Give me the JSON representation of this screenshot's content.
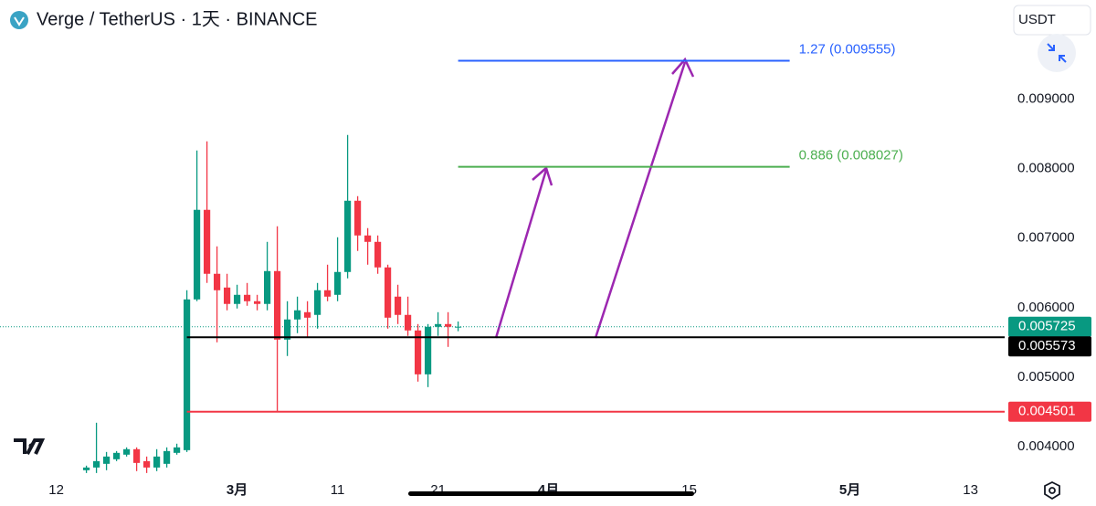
{
  "header": {
    "title": "Verge / TetherUS · 1天 · BINANCE",
    "currency": "USDT"
  },
  "chart_data": {
    "type": "candlestick",
    "x": [
      3,
      4,
      5,
      6,
      7,
      8,
      9,
      10,
      11,
      12,
      13,
      14,
      15,
      16,
      17,
      18,
      19,
      20,
      21,
      22,
      23,
      24,
      25,
      26,
      27,
      28,
      29,
      30,
      31,
      32,
      33,
      34,
      35,
      36,
      37,
      38,
      39,
      40
    ],
    "open": [
      0.003658,
      0.003697,
      0.00375,
      0.003816,
      0.003882,
      0.003961,
      0.003789,
      0.003697,
      0.00375,
      0.003908,
      0.003947,
      0.006118,
      0.007408,
      0.006487,
      0.006289,
      0.006053,
      0.006184,
      0.006092,
      0.006053,
      0.006526,
      0.005539,
      0.005829,
      0.005934,
      0.005895,
      0.00625,
      0.006184,
      0.006513,
      0.007539,
      0.007039,
      0.006947,
      0.006579,
      0.006158,
      0.005895,
      0.005671,
      0.005039,
      0.005724,
      0.005763,
      0.005724
    ],
    "high": [
      0.003724,
      0.004342,
      0.003921,
      0.003934,
      0.003987,
      0.003987,
      0.003855,
      0.003961,
      0.003987,
      0.00404,
      0.00625,
      0.008263,
      0.008395,
      0.006882,
      0.006487,
      0.006329,
      0.006355,
      0.006184,
      0.006947,
      0.007171,
      0.006092,
      0.006158,
      0.006092,
      0.006355,
      0.006618,
      0.007013,
      0.008487,
      0.007605,
      0.007145,
      0.007039,
      0.006618,
      0.006329,
      0.006158,
      0.005763,
      0.005763,
      0.005934,
      0.005934,
      0.0058
    ],
    "low": [
      0.003618,
      0.003618,
      0.003658,
      0.003789,
      0.003855,
      0.003645,
      0.003618,
      0.003645,
      0.003697,
      0.003882,
      0.003921,
      0.006092,
      0.006355,
      0.0055,
      0.005961,
      0.005987,
      0.006026,
      0.005961,
      0.005961,
      0.004501,
      0.005303,
      0.005632,
      0.005566,
      0.005697,
      0.006092,
      0.006092,
      0.006421,
      0.006816,
      0.006618,
      0.006487,
      0.005697,
      0.005763,
      0.005592,
      0.004934,
      0.004855,
      0.005592,
      0.005434,
      0.00566
    ],
    "close": [
      0.003697,
      0.003789,
      0.003855,
      0.003908,
      0.003961,
      0.003763,
      0.003697,
      0.003855,
      0.003934,
      0.003987,
      0.006118,
      0.007408,
      0.006487,
      0.00625,
      0.006053,
      0.006184,
      0.006092,
      0.006053,
      0.006526,
      0.005539,
      0.005829,
      0.005961,
      0.005855,
      0.00625,
      0.006158,
      0.006513,
      0.007539,
      0.007039,
      0.006947,
      0.006579,
      0.005855,
      0.005895,
      0.005671,
      0.005039,
      0.005724,
      0.005763,
      0.005724,
      0.005725
    ],
    "up_color": "#089981",
    "down_color": "#f23645",
    "xlim": [
      -5.6,
      94.4
    ],
    "xticks": [
      {
        "value": 0,
        "label": "12"
      },
      {
        "value": 18,
        "label": "3月"
      },
      {
        "value": 28,
        "label": "11"
      },
      {
        "value": 38,
        "label": "21"
      },
      {
        "value": 49,
        "label": "4月"
      },
      {
        "value": 63,
        "label": "15"
      },
      {
        "value": 79,
        "label": "5月"
      },
      {
        "value": 91,
        "label": "13"
      }
    ],
    "ylim": [
      0.00359,
      0.01043
    ],
    "yticks": [
      {
        "value": 0.004,
        "label": "0.004000"
      },
      {
        "value": 0.005,
        "label": "0.005000"
      },
      {
        "value": 0.006,
        "label": "0.006000"
      },
      {
        "value": 0.007,
        "label": "0.007000"
      },
      {
        "value": 0.008,
        "label": "0.008000"
      },
      {
        "value": 0.009,
        "label": "0.009000"
      }
    ],
    "last_price": 0.005725,
    "levels": [
      {
        "value": 0.005573,
        "color": "#000000",
        "start_x": 13
      },
      {
        "value": 0.004501,
        "color": "#f23645",
        "start_x": 13
      }
    ],
    "fib_levels": [
      {
        "label": "1.27 (0.009555)",
        "value": 0.009555,
        "color": "#2962ff",
        "start_x": 40,
        "end_x": 73
      },
      {
        "label": "0.886 (0.008027)",
        "value": 0.008027,
        "color": "#4caf50",
        "start_x": 40,
        "end_x": 73
      }
    ]
  }
}
